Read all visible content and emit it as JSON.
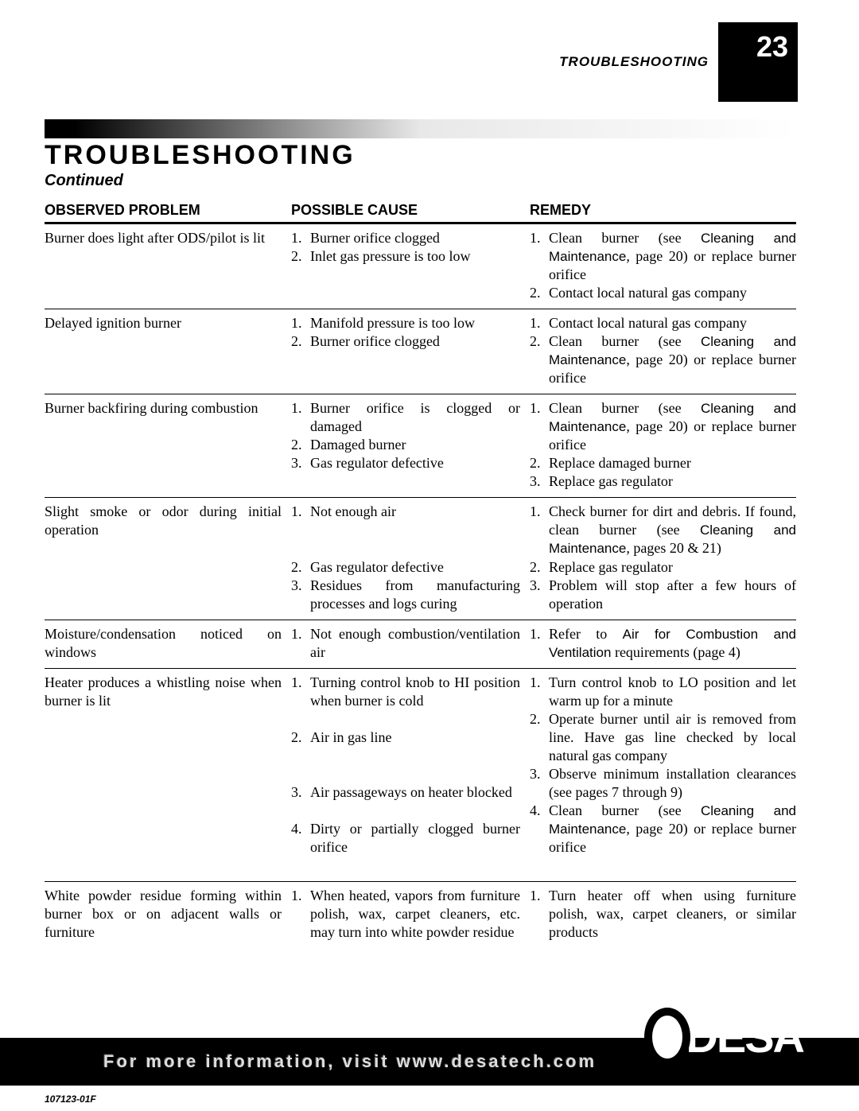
{
  "header": {
    "section_label": "TROUBLESHOOTING",
    "page_number": "23"
  },
  "title": "TROUBLESHOOTING",
  "subtitle": "Continued",
  "columns": [
    "OBSERVED PROBLEM",
    "POSSIBLE CAUSE",
    "REMEDY"
  ],
  "rows": [
    {
      "problem": "Burner does light after ODS/pilot is lit",
      "causes": [
        "Burner orifice clogged",
        "Inlet gas pressure is too low"
      ],
      "remedies": [
        {
          "pre": "Clean burner (see ",
          "sans": "Cleaning and Maintenance",
          "post": ", page 20) or replace burner orifice"
        },
        {
          "pre": "Contact local natural gas company",
          "sans": "",
          "post": ""
        }
      ]
    },
    {
      "problem": "Delayed ignition burner",
      "causes": [
        "Manifold pressure is too low",
        "Burner orifice clogged"
      ],
      "remedies": [
        {
          "pre": "Contact local natural gas company",
          "sans": "",
          "post": ""
        },
        {
          "pre": "Clean burner (see ",
          "sans": "Cleaning and Maintenance",
          "post": ", page 20) or replace burner orifice"
        }
      ]
    },
    {
      "problem": "Burner backfiring during combustion",
      "causes": [
        "Burner orifice is clogged or damaged",
        "Damaged burner",
        "Gas regulator defective"
      ],
      "remedies": [
        {
          "pre": "Clean burner (see ",
          "sans": "Cleaning and Maintenance",
          "post": ", page 20) or replace burner orifice"
        },
        {
          "pre": "Replace damaged burner",
          "sans": "",
          "post": ""
        },
        {
          "pre": "Replace gas regulator",
          "sans": "",
          "post": ""
        }
      ]
    },
    {
      "problem": "Slight smoke or odor during initial operation",
      "causes": [
        "Not enough air",
        "Gas regulator defective",
        "Residues from manufacturing processes and logs curing"
      ],
      "remedies": [
        {
          "pre": "Check burner for dirt and debris. If found, clean burner (see ",
          "sans": "Cleaning and Maintenance",
          "post": ", pages 20 & 21)"
        },
        {
          "pre": "Replace gas regulator",
          "sans": "",
          "post": ""
        },
        {
          "pre": "Problem will stop after a few hours of operation",
          "sans": "",
          "post": ""
        }
      ]
    },
    {
      "problem": "Moisture/condensation noticed on windows",
      "causes": [
        "Not enough combustion/ventilation air"
      ],
      "remedies": [
        {
          "pre": "Refer to ",
          "sans": "Air for Combustion and Ventilation",
          "post": " requirements (page 4)"
        }
      ]
    },
    {
      "problem": "Heater produces a whistling noise when burner is lit",
      "causes": [
        "Turning control knob to HI position when burner is cold",
        "Air in gas line",
        "Air passageways on heater blocked",
        "Dirty or partially clogged burner orifice"
      ],
      "remedies": [
        {
          "pre": "Turn control knob to LO position and let warm up for a minute",
          "sans": "",
          "post": ""
        },
        {
          "pre": "Operate burner until air is removed from line. Have gas line checked by local natural gas company",
          "sans": "",
          "post": ""
        },
        {
          "pre": "Observe minimum installation clearances (see pages 7 through 9)",
          "sans": "",
          "post": ""
        },
        {
          "pre": "Clean burner (see ",
          "sans": "Cleaning and Maintenance",
          "post": ", page 20) or replace burner orifice"
        }
      ]
    },
    {
      "problem": "White powder residue forming within burner box or on adjacent walls or furniture",
      "causes": [
        "When heated, vapors from furniture polish, wax, carpet cleaners, etc. may turn into white powder residue"
      ],
      "remedies": [
        {
          "pre": "Turn heater off when using furniture polish, wax, carpet cleaners, or similar products",
          "sans": "",
          "post": ""
        }
      ]
    }
  ],
  "cause_spacers": {
    "3": [
      2,
      0,
      0
    ],
    "5": [
      1,
      2,
      1,
      1
    ]
  },
  "footer": {
    "text": "For more information, visit www.desatech.com",
    "logo_text": "DESA",
    "doc_code": "107123-01F"
  }
}
